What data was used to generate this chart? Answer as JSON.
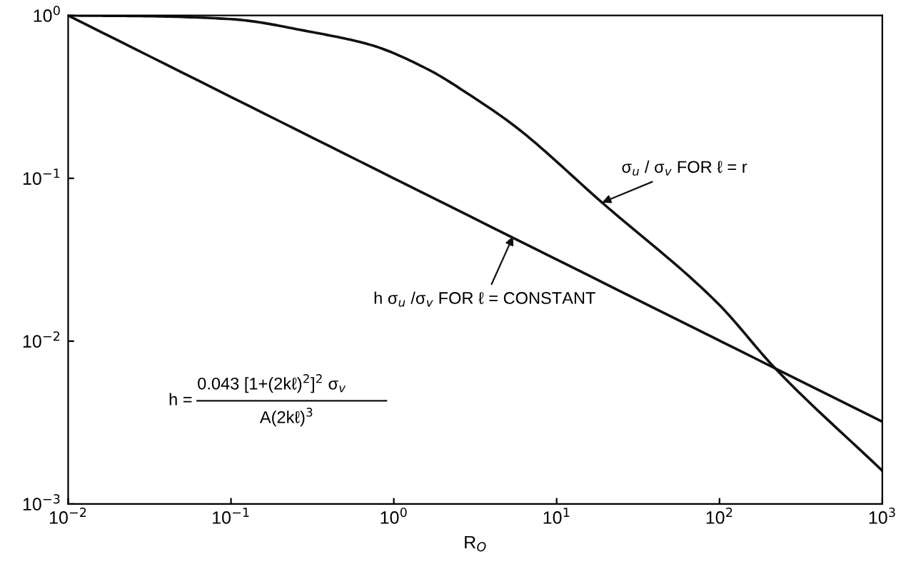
{
  "chart_data": {
    "type": "line",
    "xlabel": "R$_{O}$",
    "log": "xy",
    "xlim": [
      0.01,
      1000
    ],
    "ylim": [
      0.001,
      1
    ],
    "xticks": [
      {
        "value": 0.01,
        "label": "10$^{−2}$"
      },
      {
        "value": 0.1,
        "label": "10$^{−1}$"
      },
      {
        "value": 1,
        "label": "10$^{0}$"
      },
      {
        "value": 10,
        "label": "10$^{1}$"
      },
      {
        "value": 100,
        "label": "10$^{2}$"
      },
      {
        "value": 1000,
        "label": "10$^{3}$"
      }
    ],
    "yticks": [
      {
        "value": 0.001,
        "label": "10$^{−3}$"
      },
      {
        "value": 0.01,
        "label": "10$^{−2}$"
      },
      {
        "value": 0.1,
        "label": "10$^{−1}$"
      },
      {
        "value": 1,
        "label": "10$^{0}$"
      }
    ],
    "grid": false,
    "marker": "none",
    "line_style": "solid",
    "series": [
      {
        "color": "#111111",
        "x": [
          0.01,
          0.0316,
          0.1,
          0.316,
          0.72,
          1.6,
          3.0,
          5.5,
          19,
          98,
          220,
          1000
        ],
        "values": [
          1,
          0.99,
          0.95,
          0.79,
          0.66,
          0.47,
          0.32,
          0.21,
          0.071,
          0.017,
          0.0068,
          0.0016
        ]
      },
      {
        "color": "#111111",
        "x": [
          0.01,
          1,
          1000
        ],
        "values": [
          1,
          0.1,
          0.0032
        ]
      }
    ],
    "annotations": [
      {
        "text": "σ$_{u}$ / σ$_{v}$ FOR ℓ = r",
        "x": 19,
        "y": 0.071
      },
      {
        "text": "h σ$_{u}$ /σ$_{v}$ FOR ℓ = CONSTANT",
        "x": 5.4,
        "y": 0.044
      },
      "h =",
      "0.043 [1+(2kℓ)$^{2}$]$^{2}$ σ$_{v}$",
      "A(2kℓ)$^{3}$"
    ]
  }
}
